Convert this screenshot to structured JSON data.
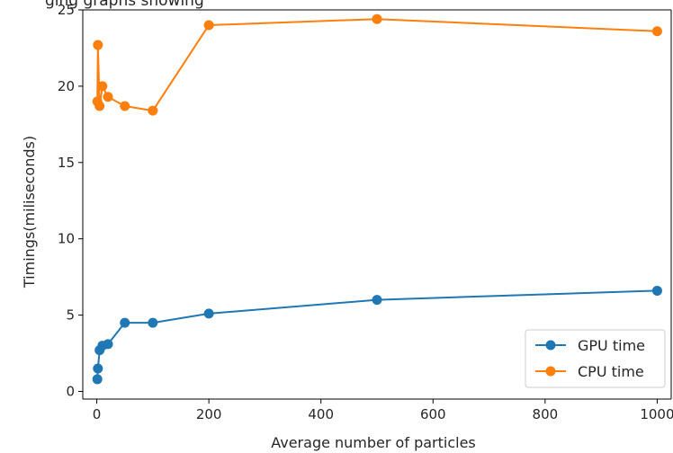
{
  "chart_data": {
    "type": "line",
    "title": "ging graphs showing",
    "xlabel": "Average number of particles",
    "ylabel": "Timings(miliseconds)",
    "xlim": [
      -25,
      1025
    ],
    "ylim": [
      -0.5,
      25
    ],
    "xticks": [
      0,
      200,
      400,
      600,
      800,
      1000
    ],
    "yticks": [
      0,
      5,
      10,
      15,
      20,
      25
    ],
    "grid": false,
    "legend_position": "lower-right",
    "series": [
      {
        "name": "GPU time",
        "color": "#1f77b4",
        "marker": "circle",
        "x": [
          1,
          2,
          5,
          10,
          20,
          50,
          100,
          200,
          500,
          1000
        ],
        "y": [
          0.8,
          1.5,
          2.7,
          3.0,
          3.1,
          4.5,
          4.5,
          5.1,
          6.0,
          6.6
        ]
      },
      {
        "name": "CPU time",
        "color": "#ff7f0e",
        "marker": "circle",
        "x": [
          1,
          2,
          5,
          10,
          20,
          50,
          100,
          200,
          500,
          1000
        ],
        "y": [
          19.0,
          22.7,
          18.7,
          20.0,
          19.3,
          18.7,
          18.4,
          24.0,
          24.4,
          23.6
        ]
      }
    ]
  }
}
